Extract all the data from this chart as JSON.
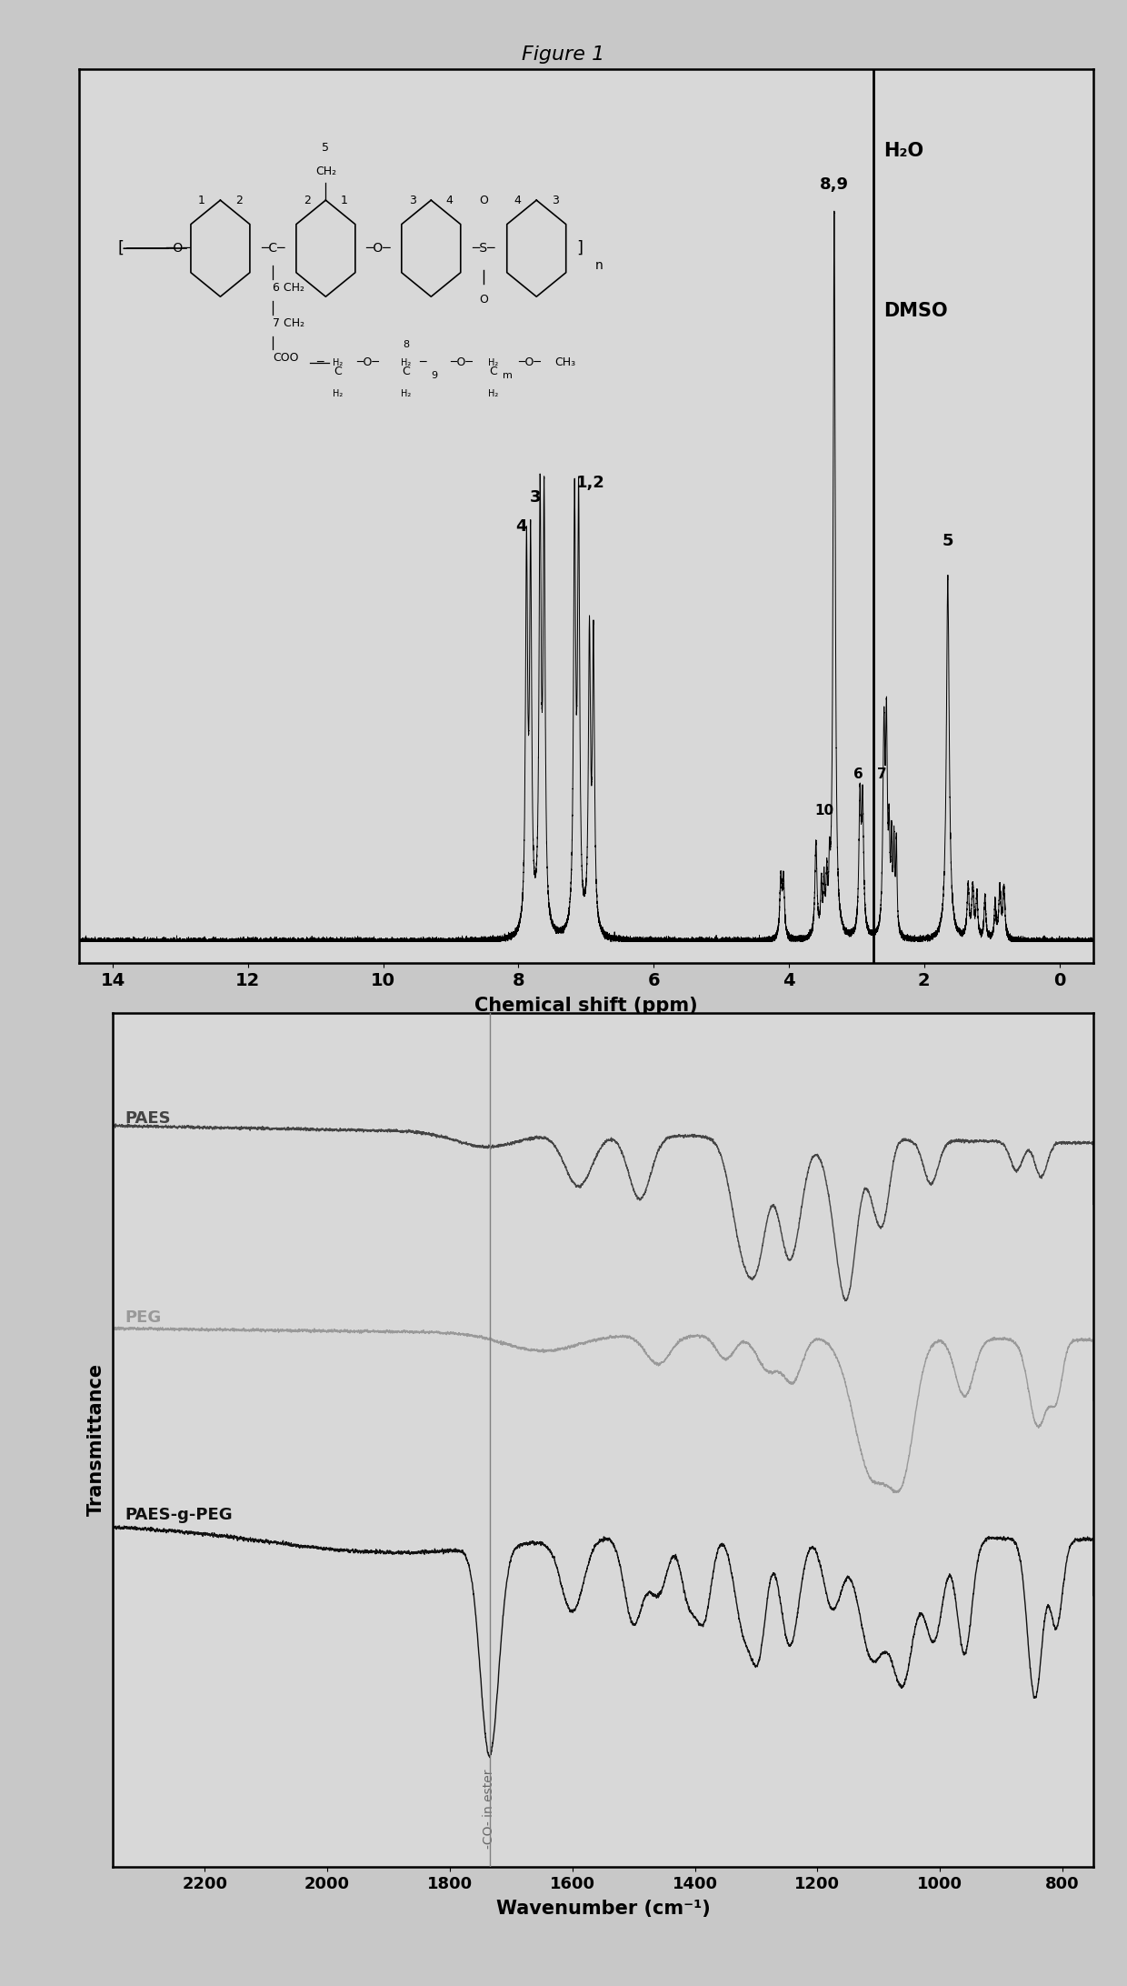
{
  "figure_title": "Figure 1",
  "bg_color": "#c8c8c8",
  "plot_bg": "#d8d8d8",
  "nmr": {
    "xlim": [
      14.5,
      -0.5
    ],
    "xlabel": "Chemical shift (ppm)",
    "xticks": [
      14,
      12,
      10,
      8,
      6,
      4,
      2,
      0
    ],
    "vline_x": 2.75,
    "h2o_label": "H₂O",
    "dmso_label": "DMSO"
  },
  "ir": {
    "xlim_left": 2350,
    "xlim_right": 750,
    "xlabel": "Wavenumber (cm⁻¹)",
    "ylabel": "Transmittance",
    "vertical_line_x": 1735,
    "vertical_line_label": "-CO- in ester",
    "paes_color": "#444444",
    "peg_color": "#999999",
    "paes_g_peg_color": "#111111",
    "xticks": [
      2200,
      2000,
      1800,
      1600,
      1400,
      1200,
      1000,
      800
    ]
  }
}
